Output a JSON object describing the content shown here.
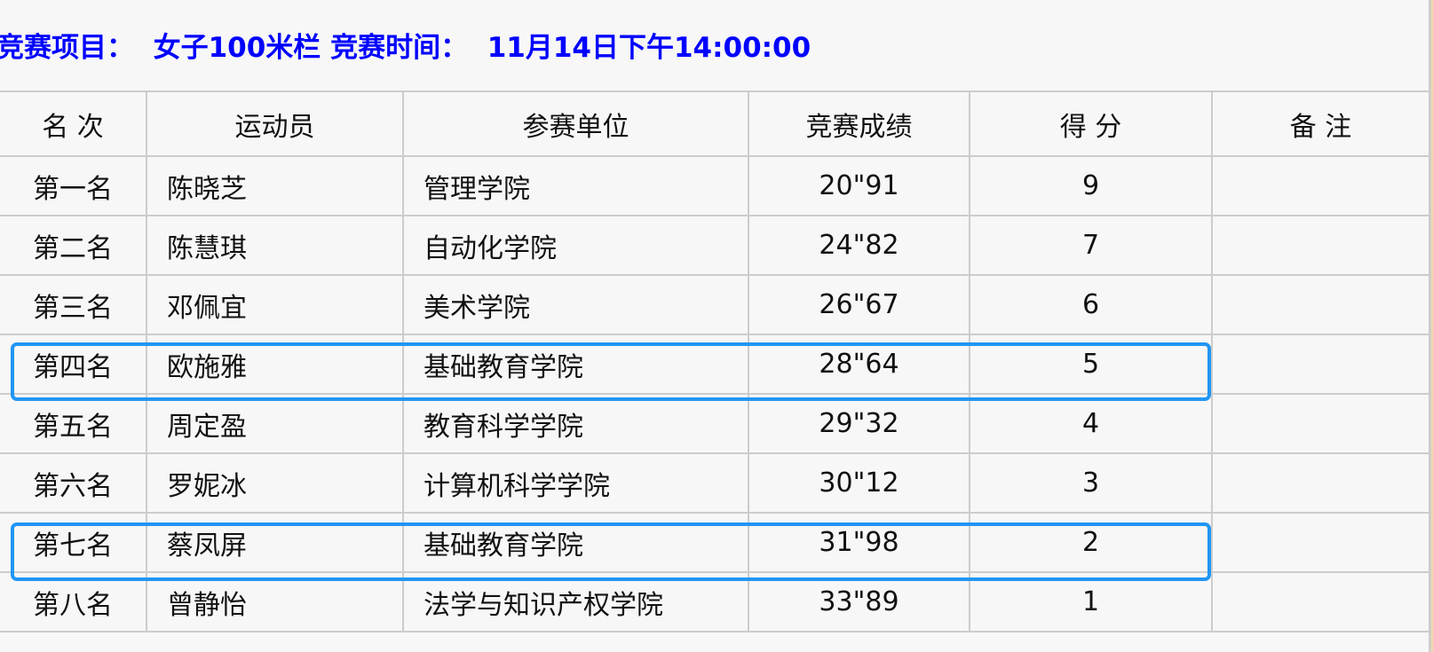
{
  "title": {
    "label1": "竞赛项目：",
    "event": "女子100米栏",
    "label2": "竞赛时间：",
    "time": "11月14日下午14:00:00"
  },
  "columns": [
    "名 次",
    "运动员",
    "参赛单位",
    "竞赛成绩",
    "得 分",
    "备 注"
  ],
  "rows": [
    {
      "rank": "第一名",
      "athlete": "陈晓芝",
      "unit": "管理学院",
      "result": "20\"91",
      "score": "9",
      "note": ""
    },
    {
      "rank": "第二名",
      "athlete": "陈慧琪",
      "unit": "自动化学院",
      "result": "24\"82",
      "score": "7",
      "note": ""
    },
    {
      "rank": "第三名",
      "athlete": "邓佩宜",
      "unit": "美术学院",
      "result": "26\"67",
      "score": "6",
      "note": ""
    },
    {
      "rank": "第四名",
      "athlete": "欧施雅",
      "unit": "基础教育学院",
      "result": "28\"64",
      "score": "5",
      "note": ""
    },
    {
      "rank": "第五名",
      "athlete": "周定盈",
      "unit": "教育科学学院",
      "result": "29\"32",
      "score": "4",
      "note": ""
    },
    {
      "rank": "第六名",
      "athlete": "罗妮冰",
      "unit": "计算机科学学院",
      "result": "30\"12",
      "score": "3",
      "note": ""
    },
    {
      "rank": "第七名",
      "athlete": "蔡凤屏",
      "unit": "基础教育学院",
      "result": "31\"98",
      "score": "2",
      "note": ""
    },
    {
      "rank": "第八名",
      "athlete": "曾静怡",
      "unit": "法学与知识产权学院",
      "result": "33\"89",
      "score": "1",
      "note": ""
    }
  ],
  "highlighted_rows": [
    4,
    7
  ],
  "colors": {
    "title": "#0000ff",
    "highlight": "#2196f3",
    "border": "#cccccc"
  }
}
